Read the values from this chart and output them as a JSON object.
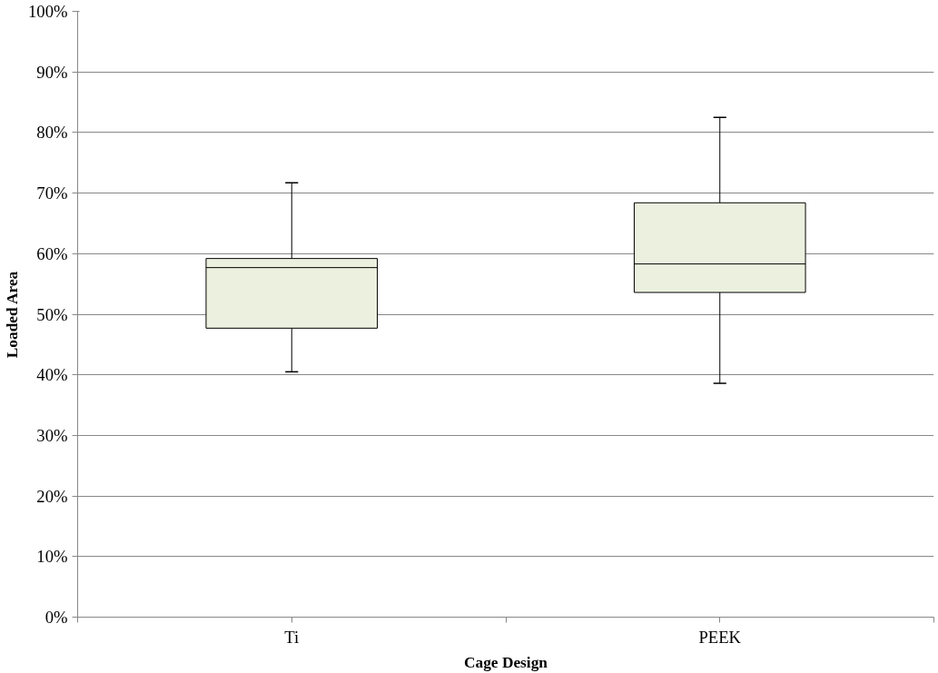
{
  "chart_data": {
    "type": "box",
    "xlabel": "Cage Design",
    "ylabel": "Loaded Area",
    "categories": [
      "Ti",
      "PEEK"
    ],
    "boxes": [
      {
        "low": 40.5,
        "q1": 47.7,
        "median": 57.7,
        "q3": 59.2,
        "high": 71.7
      },
      {
        "low": 38.6,
        "q1": 53.6,
        "median": 58.3,
        "q3": 68.4,
        "high": 82.5
      }
    ],
    "color": "#ebf1de",
    "ylim": [
      0,
      100
    ],
    "yticks": [
      {
        "value": 0,
        "label": "0%"
      },
      {
        "value": 10,
        "label": "10%"
      },
      {
        "value": 20,
        "label": "20%"
      },
      {
        "value": 30,
        "label": "30%"
      },
      {
        "value": 40,
        "label": "40%"
      },
      {
        "value": 50,
        "label": "50%"
      },
      {
        "value": 60,
        "label": "60%"
      },
      {
        "value": 70,
        "label": "70%"
      },
      {
        "value": 80,
        "label": "80%"
      },
      {
        "value": 90,
        "label": "90%"
      },
      {
        "value": 100,
        "label": "100%"
      }
    ],
    "grid": "y"
  }
}
